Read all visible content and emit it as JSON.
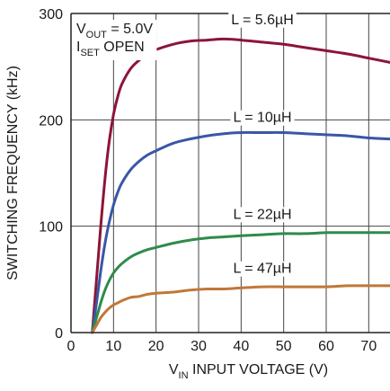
{
  "chart_data": {
    "type": "line",
    "title": "",
    "xlabel_prefix": "V",
    "xlabel_sub": "IN",
    "xlabel_rest": " INPUT VOLTAGE (V)",
    "ylabel": "SWITCHING FREQUENCY (kHz)",
    "xlim": [
      0,
      75
    ],
    "ylim": [
      0,
      300
    ],
    "xticks": [
      "0",
      "10",
      "20",
      "30",
      "40",
      "50",
      "60",
      "70"
    ],
    "yticks": [
      "0",
      "100",
      "200",
      "300"
    ],
    "grid": true,
    "annotation": {
      "line1_prefix": "V",
      "line1_sub": "OUT",
      "line1_rest": " = 5.0V",
      "line2_prefix": "I",
      "line2_sub": "SET",
      "line2_rest": " OPEN"
    },
    "series": [
      {
        "name": "L = 5.6µH",
        "color": "#8c1538",
        "x": [
          5,
          6,
          7,
          8,
          9,
          10,
          11,
          12,
          14,
          16,
          18,
          20,
          24,
          28,
          32,
          36,
          40,
          45,
          50,
          55,
          60,
          65,
          70,
          75
        ],
        "y": [
          0,
          50,
          100,
          145,
          180,
          205,
          222,
          234,
          248,
          256,
          262,
          266,
          271,
          274,
          275,
          276,
          275,
          273,
          271,
          268,
          265,
          262,
          258,
          254
        ]
      },
      {
        "name": "L = 10µH",
        "color": "#3a56a6",
        "x": [
          5,
          6,
          7,
          8,
          9,
          10,
          11,
          12,
          14,
          16,
          18,
          20,
          24,
          28,
          32,
          36,
          40,
          45,
          50,
          55,
          60,
          65,
          70,
          75
        ],
        "y": [
          0,
          28,
          58,
          84,
          104,
          120,
          132,
          141,
          153,
          161,
          167,
          171,
          178,
          182,
          185,
          187,
          188,
          188,
          188,
          187,
          186,
          185,
          183,
          182
        ]
      },
      {
        "name": "L = 22µH",
        "color": "#2e8b4a",
        "x": [
          5,
          6,
          7,
          8,
          9,
          10,
          11,
          12,
          14,
          16,
          18,
          20,
          24,
          28,
          32,
          36,
          40,
          45,
          50,
          55,
          60,
          65,
          70,
          75
        ],
        "y": [
          0,
          14,
          28,
          40,
          49,
          56,
          61,
          65,
          71,
          75,
          78,
          80,
          84,
          87,
          89,
          90,
          91,
          92,
          93,
          93,
          94,
          94,
          94,
          94
        ]
      },
      {
        "name": "L = 47µH",
        "color": "#c07838",
        "x": [
          5,
          6,
          7,
          8,
          9,
          10,
          11,
          12,
          14,
          16,
          18,
          20,
          24,
          28,
          32,
          36,
          40,
          45,
          50,
          55,
          60,
          65,
          70,
          75
        ],
        "y": [
          0,
          7,
          14,
          19,
          23,
          26,
          28,
          30,
          33,
          34,
          36,
          37,
          38,
          40,
          41,
          41,
          42,
          43,
          43,
          43,
          43,
          44,
          44,
          44
        ]
      }
    ]
  }
}
